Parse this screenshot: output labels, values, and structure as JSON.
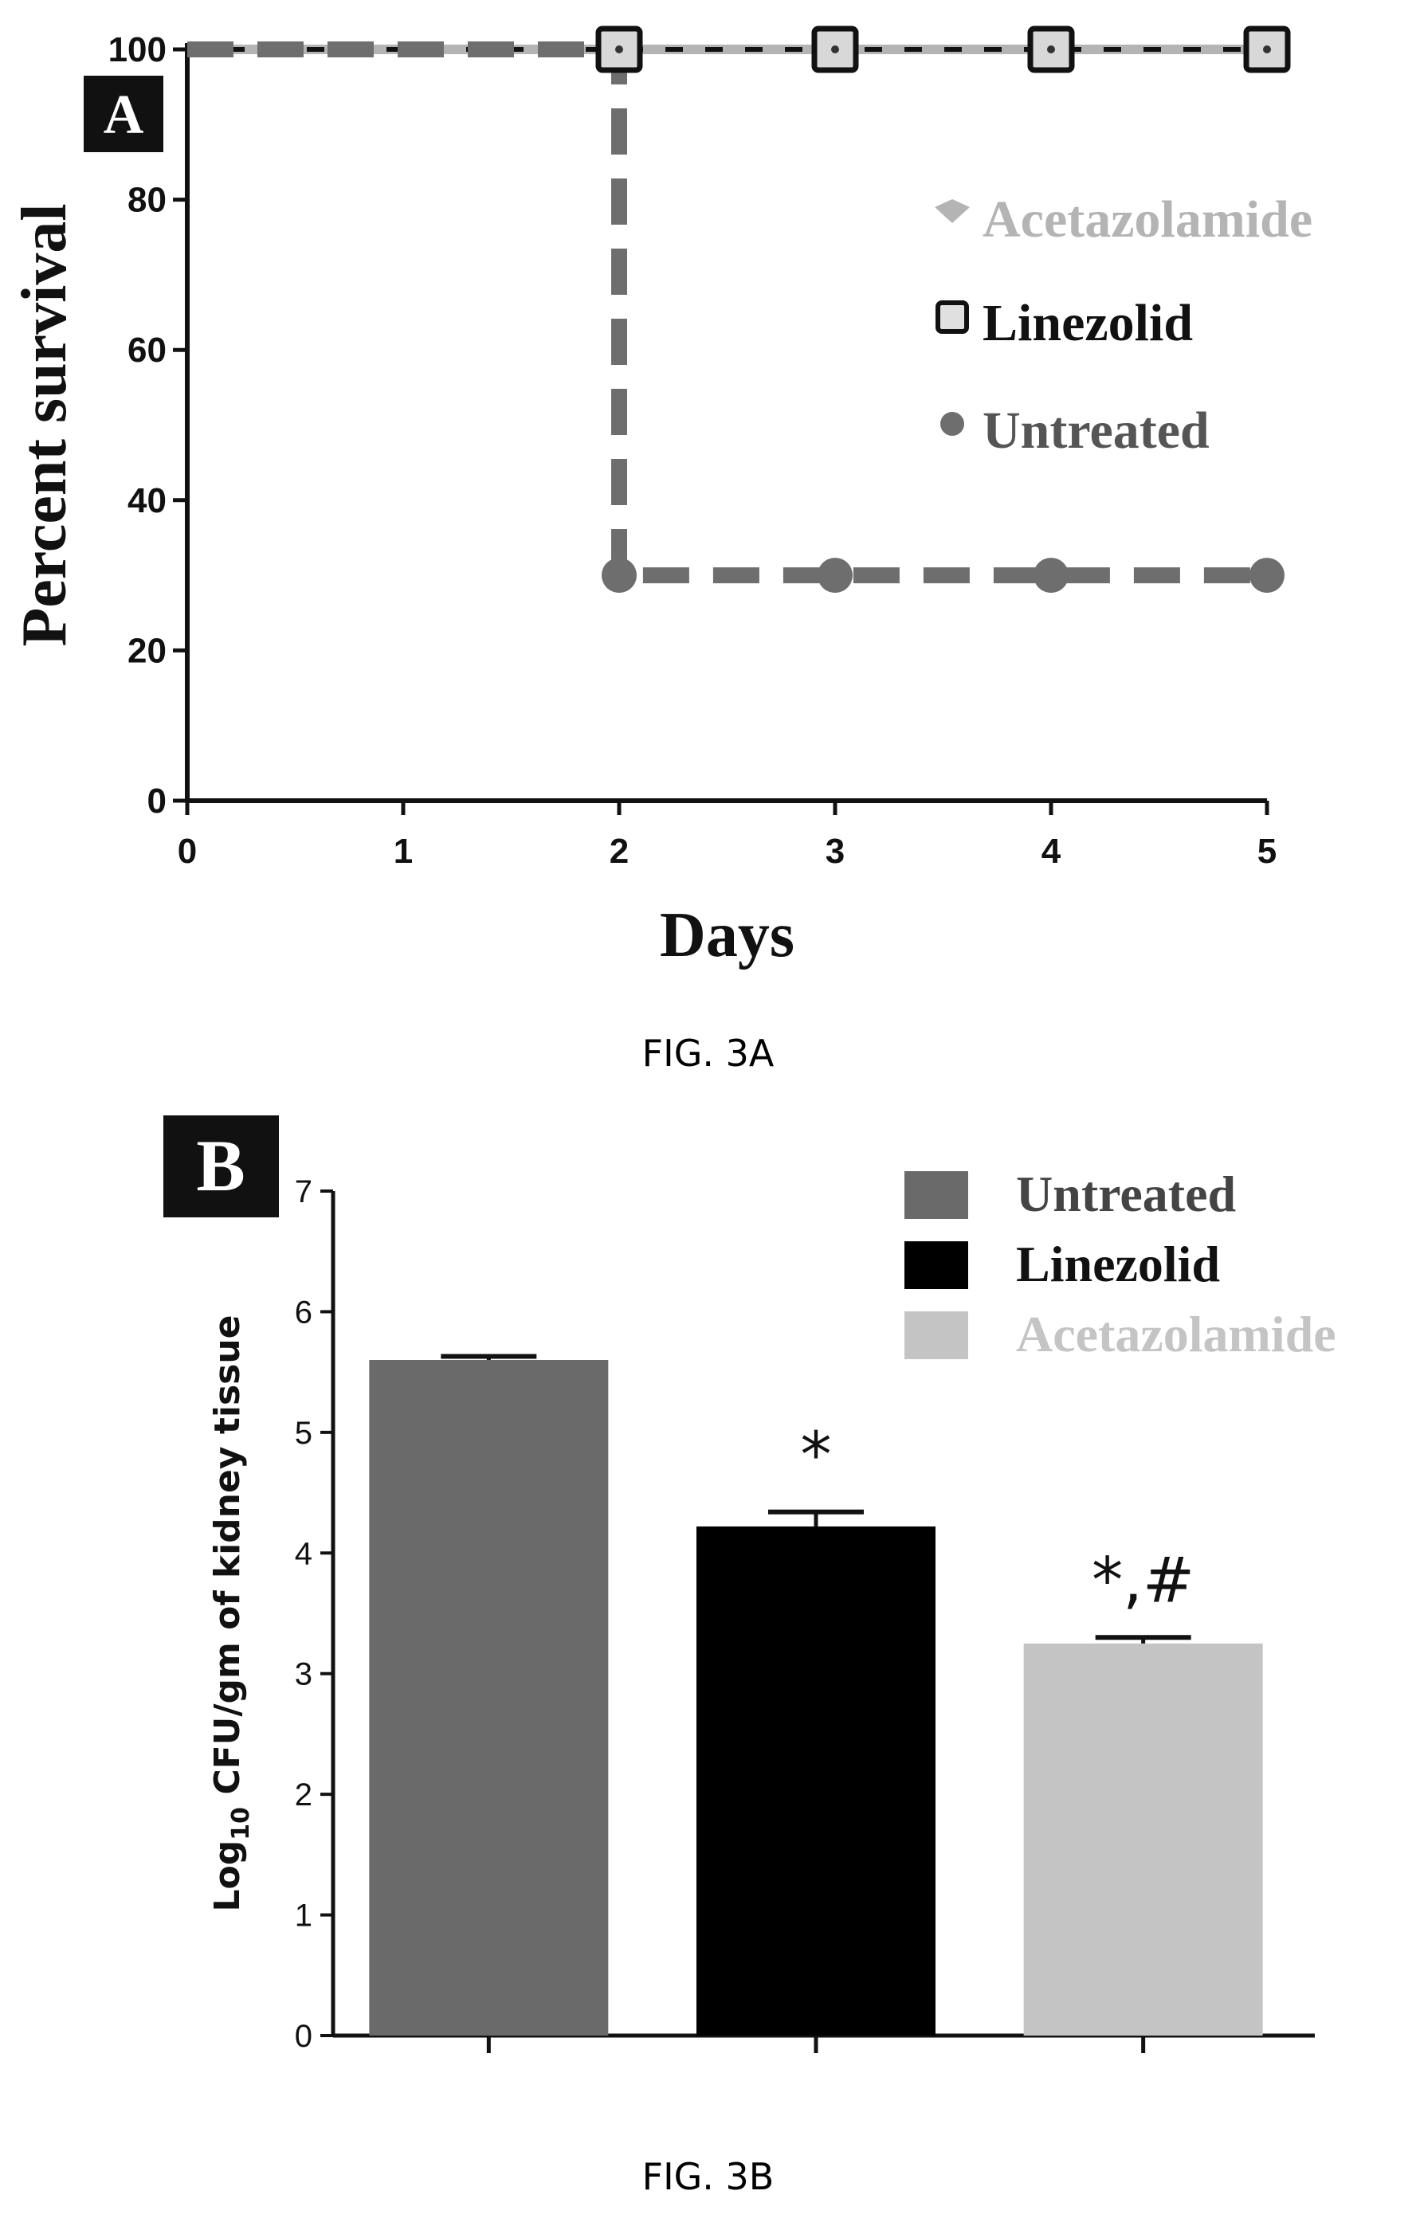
{
  "figure_a_caption": "FIG. 3A",
  "figure_b_caption": "FIG. 3B",
  "chart_data": [
    {
      "type": "line",
      "panel_label": "A",
      "xlabel": "Days",
      "ylabel": "Percent survival",
      "xlim": [
        0,
        5
      ],
      "ylim": [
        0,
        100
      ],
      "x_ticks": [
        "0",
        "1",
        "2",
        "3",
        "4",
        "5"
      ],
      "y_ticks": [
        "0",
        "20",
        "40",
        "60",
        "80",
        "100"
      ],
      "legend_position": "right",
      "grid": false,
      "series": [
        {
          "name": "Acetazolamide",
          "color": "#b4b4b4",
          "marker": "diamond",
          "points": [
            [
              0,
              100
            ],
            [
              2,
              100
            ],
            [
              3,
              100
            ],
            [
              4,
              100
            ],
            [
              5,
              100
            ]
          ]
        },
        {
          "name": "Linezolid",
          "color": "#111111",
          "marker": "square-open",
          "points": [
            [
              0,
              100
            ],
            [
              2,
              100
            ],
            [
              3,
              100
            ],
            [
              4,
              100
            ],
            [
              5,
              100
            ]
          ]
        },
        {
          "name": "Untreated",
          "color": "#6e6e6e",
          "marker": "circle",
          "points": [
            [
              0,
              100
            ],
            [
              2,
              100
            ],
            [
              2,
              30
            ],
            [
              3,
              30
            ],
            [
              4,
              30
            ],
            [
              5,
              30
            ]
          ]
        }
      ]
    },
    {
      "type": "bar",
      "panel_label": "B",
      "ylabel_prefix": "Log",
      "ylabel_subscript": "10",
      "ylabel_suffix": " CFU/gm of kidney tissue",
      "ylim": [
        0,
        7
      ],
      "y_ticks": [
        "0",
        "1",
        "2",
        "3",
        "4",
        "5",
        "6",
        "7"
      ],
      "legend_position": "top-right",
      "grid": false,
      "categories": [
        "Untreated",
        "Linezolid",
        "Acetazolamide"
      ],
      "values": [
        5.6,
        4.22,
        3.25
      ],
      "errors": [
        0.03,
        0.12,
        0.05
      ],
      "colors": [
        "#6a6a6a",
        "#000000",
        "#c4c4c4"
      ],
      "annotations": [
        "",
        "*",
        "*,#"
      ]
    }
  ]
}
